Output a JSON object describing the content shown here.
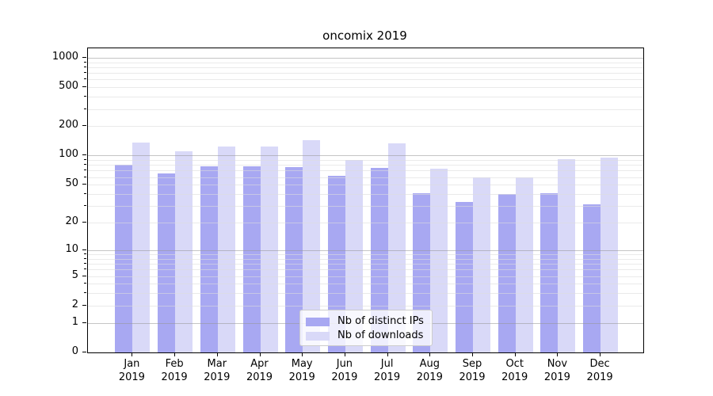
{
  "chart_data": {
    "type": "bar",
    "title": "oncomix 2019",
    "categories": [
      "Jan",
      "Feb",
      "Mar",
      "Apr",
      "May",
      "Jun",
      "Jul",
      "Aug",
      "Sep",
      "Oct",
      "Nov",
      "Dec"
    ],
    "x_tick_year": "2019",
    "series": [
      {
        "name": "Nb of distinct IPs",
        "color": "#a8a8f2",
        "values": [
          80,
          65,
          78,
          78,
          76,
          62,
          75,
          41,
          33,
          40,
          41,
          31
        ]
      },
      {
        "name": "Nb of downloads",
        "color": "#d9d9f8",
        "values": [
          137,
          110,
          124,
          125,
          144,
          90,
          134,
          73,
          60,
          60,
          92,
          95
        ]
      }
    ],
    "y_axis": {
      "scale": "log1p",
      "tick_labels": [
        1000,
        500,
        200,
        100,
        50,
        20,
        10,
        5,
        2,
        1,
        0
      ],
      "major_gridlines": [
        1,
        10,
        100,
        1000
      ],
      "minor_gridlines": [
        2,
        3,
        4,
        5,
        6,
        7,
        8,
        9,
        20,
        30,
        40,
        50,
        60,
        70,
        80,
        90,
        200,
        300,
        400,
        500,
        600,
        700,
        800,
        900
      ],
      "range": [
        0,
        1250
      ]
    },
    "legend": {
      "position": "lower center"
    },
    "grid": true
  },
  "colors": {
    "background": "#ffffff",
    "axis": "#000000",
    "major_grid": "#c5c5c5",
    "minor_grid": "#eaeaea",
    "bar_distinct_ips": "#a8a8f2",
    "bar_downloads": "#d9d9f8"
  }
}
